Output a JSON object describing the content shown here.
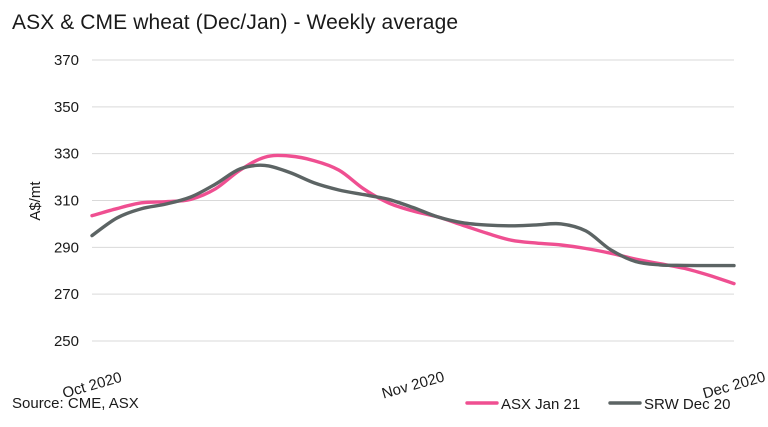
{
  "chart_data": {
    "type": "line",
    "title": "ASX & CME wheat (Dec/Jan) - Weekly average",
    "ylabel": "A$/mt",
    "xlabel": "",
    "ylim": [
      250,
      370
    ],
    "yticks": [
      250,
      270,
      290,
      310,
      330,
      350,
      370
    ],
    "x_tick_labels": [
      "Oct 2020",
      "Nov 2020",
      "Dec 2020"
    ],
    "x_tick_index": [
      0,
      13,
      26
    ],
    "grid": true,
    "legend_position": "bottom-right",
    "series": [
      {
        "name": "ASX Jan 21",
        "color": "#ef4f91",
        "values": [
          303.5,
          306.5,
          309,
          309.5,
          310.5,
          315,
          323,
          328.5,
          329,
          327,
          323,
          315,
          309,
          305.5,
          303,
          299.5,
          296,
          293,
          291.8,
          291,
          289.5,
          287.5,
          285,
          283,
          281,
          278,
          274.5
        ]
      },
      {
        "name": "SRW Dec 20",
        "color": "#5c6464",
        "values": [
          295,
          302.5,
          306.5,
          308.5,
          311.5,
          317,
          323.5,
          325,
          322,
          317.5,
          314.5,
          312.5,
          310.5,
          307,
          303,
          300.5,
          299.5,
          299.2,
          299.6,
          300,
          297,
          289,
          284,
          282.5,
          282.3,
          282.2,
          282.2
        ]
      }
    ]
  },
  "source": "Source: CME, ASX"
}
